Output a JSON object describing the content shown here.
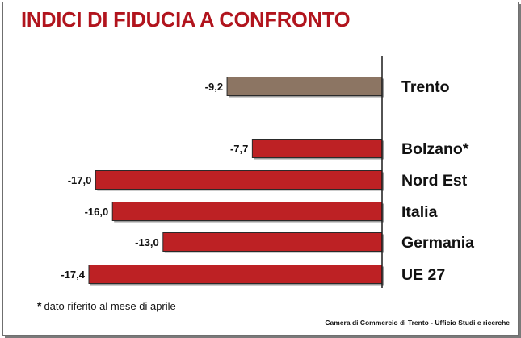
{
  "title": "INDICI DI FIDUCIA A CONFRONTO",
  "footnote": {
    "mark": "*",
    "text": "dato riferito al mese di aprile"
  },
  "source": "Camera di Commercio di Trento - Ufficio Studi e ricerche",
  "colors": {
    "title": "#b1141d",
    "highlight": "#8c7563",
    "bar": "#bd2124"
  },
  "chart_data": {
    "type": "bar",
    "orientation": "horizontal",
    "categories": [
      "Trento",
      "Bolzano*",
      "Nord Est",
      "Italia",
      "Germania",
      "UE 27"
    ],
    "values": [
      -9.2,
      -7.7,
      -17.0,
      -16.0,
      -13.0,
      -17.4
    ],
    "value_labels": [
      "-9,2",
      "-7,7",
      "-17,0",
      "-16,0",
      "-13,0",
      "-17,4"
    ],
    "highlight": "Trento",
    "xlim": [
      -17.4,
      0
    ],
    "grid": false
  }
}
